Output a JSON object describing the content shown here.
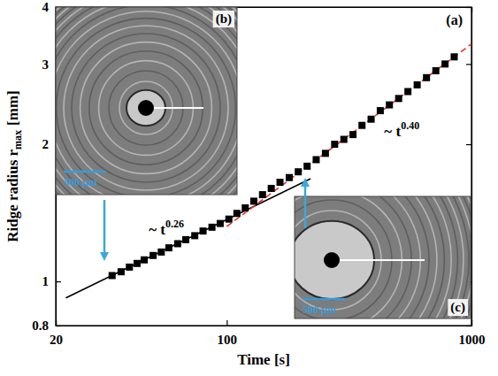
{
  "chart_data": {
    "type": "scatter",
    "panel_label": "(a)",
    "xlabel": "Time [s]",
    "ylabel": {
      "text": "Ridge radius r",
      "subscript": "max",
      "unit": "[mm]"
    },
    "log": true,
    "xlim": [
      20,
      1000
    ],
    "ylim": [
      0.8,
      4
    ],
    "xticks": [
      20,
      100,
      1000
    ],
    "yticks": [
      0.8,
      1,
      2,
      3,
      4
    ],
    "marker": "square",
    "color": "#000000",
    "x": [
      34,
      37,
      40,
      43,
      46,
      50,
      54,
      58,
      63,
      68,
      74,
      80,
      87,
      94,
      102,
      110,
      119,
      129,
      140,
      152,
      165,
      180,
      196,
      213,
      232,
      253,
      276,
      301,
      328,
      357,
      389,
      424,
      462,
      504,
      550,
      600,
      655,
      715,
      780,
      850
    ],
    "values": [
      1.03,
      1.05,
      1.075,
      1.095,
      1.115,
      1.14,
      1.16,
      1.185,
      1.21,
      1.235,
      1.26,
      1.29,
      1.315,
      1.34,
      1.37,
      1.41,
      1.45,
      1.5,
      1.55,
      1.6,
      1.65,
      1.69,
      1.74,
      1.79,
      1.85,
      1.91,
      2.0,
      2.05,
      2.1,
      2.2,
      2.27,
      2.37,
      2.44,
      2.52,
      2.61,
      2.7,
      2.8,
      2.9,
      3.0,
      3.11
    ],
    "fits": [
      {
        "x": [
          22,
          220
        ],
        "values": [
          0.92,
          1.68
        ],
        "color": "#000000",
        "line_style": "solid",
        "label": {
          "text": "~ t",
          "superscript": "0.26"
        }
      },
      {
        "x": [
          100,
          1000
        ],
        "values": [
          1.32,
          3.32
        ],
        "color": "#e8332a",
        "line_style": "dashed",
        "label": {
          "text": "~ t",
          "superscript": "0.40"
        }
      }
    ],
    "insets": [
      {
        "label": "(b)",
        "scale_bar": "500 μm"
      },
      {
        "label": "(c)",
        "scale_bar": "500 μm"
      }
    ]
  }
}
